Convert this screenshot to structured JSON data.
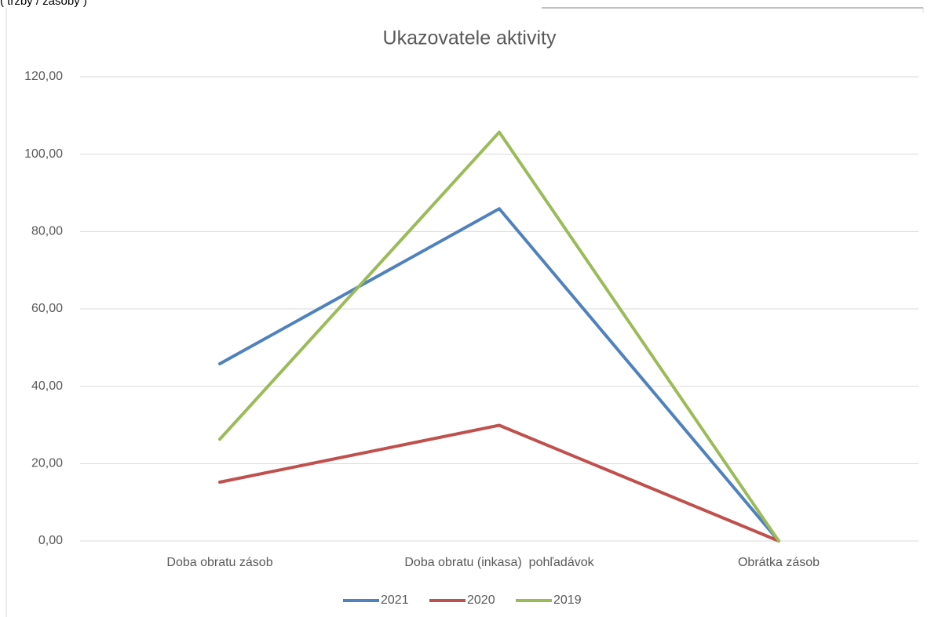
{
  "note": "( tržby / zásoby )",
  "chart_data": {
    "type": "line",
    "title": "Ukazovatele aktivity",
    "categories": [
      "Doba obratu zásob",
      "Doba obratu (inkasa)  pohľadávok",
      "Obrátka zásob"
    ],
    "series": [
      {
        "name": "2021",
        "color": "#4f81bd",
        "values": [
          45.8,
          85.9,
          0
        ]
      },
      {
        "name": "2020",
        "color": "#c0504d",
        "values": [
          15.2,
          29.9,
          0
        ]
      },
      {
        "name": "2019",
        "color": "#9bbb59",
        "values": [
          26.3,
          105.7,
          0
        ]
      }
    ],
    "ylim": [
      0,
      120
    ],
    "yticks": [
      {
        "value": 0,
        "label": "0,00"
      },
      {
        "value": 20,
        "label": "20,00"
      },
      {
        "value": 40,
        "label": "40,00"
      },
      {
        "value": 60,
        "label": "60,00"
      },
      {
        "value": 80,
        "label": "80,00"
      },
      {
        "value": 100,
        "label": "100,00"
      },
      {
        "value": 120,
        "label": "120,00"
      }
    ],
    "grid": true,
    "legend": "bottom"
  }
}
